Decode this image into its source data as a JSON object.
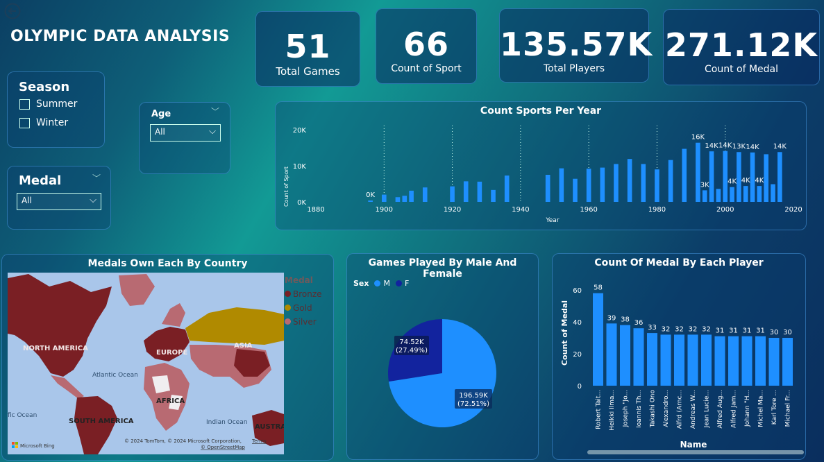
{
  "back_button_icon": "back-arrow-icon",
  "title": "OLYMPIC DATA ANALYSIS",
  "kpis": [
    {
      "value": "51",
      "label": "Total Games"
    },
    {
      "value": "66",
      "label": "Count of Sport"
    },
    {
      "value": "135.57K",
      "label": "Total Players"
    },
    {
      "value": "271.12K",
      "label": "Count of Medal"
    }
  ],
  "filters": {
    "season": {
      "title": "Season",
      "options": [
        "Summer",
        "Winter"
      ]
    },
    "age": {
      "title": "Age",
      "value": "All"
    },
    "medal": {
      "title": "Medal",
      "value": "All"
    }
  },
  "colors": {
    "bar": "#1e8fff",
    "male": "#1e8fff",
    "female": "#12239e",
    "bronze": "#7a1f24",
    "gold": "#b08a00",
    "silver": "#b86a72"
  },
  "sports_chart": {
    "title": "Count Sports Per Year",
    "xlabel": "Year",
    "ylabel": "Count of Sport",
    "yticks": [
      "0K",
      "10K",
      "20K"
    ],
    "xticks": [
      "1880",
      "1900",
      "1920",
      "1940",
      "1960",
      "1980",
      "2000",
      "2020"
    ],
    "data_labels": [
      "0K",
      "16K",
      "14K",
      "14K",
      "13K",
      "14K",
      "14K",
      "3K",
      "4K",
      "4K",
      "4K"
    ]
  },
  "map": {
    "title": "Medals Own Each By Country",
    "legend_title": "Medal",
    "legend": [
      "Bronze",
      "Gold",
      "Silver"
    ],
    "labels": [
      "NORTH AMERICA",
      "EUROPE",
      "ASIA",
      "AFRICA",
      "SOUTH AMERICA",
      "AUSTRA",
      "Atlantic Ocean",
      "Indian Ocean",
      "fic Ocean"
    ],
    "attribution": "© 2024 TomTom, © 2024 Microsoft Corporation,",
    "terms": "Terms",
    "osm": "© OpenStreetMap",
    "bing": "Microsoft Bing"
  },
  "pie": {
    "title": "Games Played By Male And Female",
    "legend_title": "Sex",
    "legend": [
      "M",
      "F"
    ],
    "label_f_value": "74.52K",
    "label_f_pct": "(27.49%)",
    "label_m_value": "196.59K",
    "label_m_pct": "(72.51%)"
  },
  "player_chart": {
    "title": "Count Of Medal By Each Player",
    "xlabel": "Name",
    "ylabel": "Count of Medal",
    "yticks": [
      "0",
      "20",
      "40",
      "60"
    ]
  },
  "chart_data": [
    {
      "type": "bar",
      "title": "Count Sports Per Year",
      "xlabel": "Year",
      "ylabel": "Count of Sport",
      "xlim": [
        1880,
        2020
      ],
      "ylim": [
        0,
        20000
      ],
      "x": [
        1896,
        1900,
        1904,
        1906,
        1908,
        1912,
        1920,
        1924,
        1928,
        1932,
        1936,
        1948,
        1952,
        1956,
        1960,
        1964,
        1968,
        1972,
        1976,
        1980,
        1984,
        1988,
        1992,
        1994,
        1996,
        1998,
        2000,
        2002,
        2004,
        2006,
        2008,
        2010,
        2012,
        2014,
        2016
      ],
      "values": [
        380,
        2000,
        1300,
        1700,
        3100,
        4000,
        4300,
        5700,
        5600,
        3300,
        7300,
        7500,
        9300,
        6400,
        9200,
        9500,
        10500,
        11900,
        10500,
        9000,
        11600,
        14700,
        16400,
        3200,
        14000,
        3600,
        14100,
        4100,
        13800,
        4400,
        13700,
        4400,
        13200,
        4900,
        13800
      ]
    },
    {
      "type": "pie",
      "title": "Games Played By Male And Female",
      "categories": [
        "M",
        "F"
      ],
      "values": [
        196590,
        74520
      ],
      "percent": [
        72.51,
        27.49
      ]
    },
    {
      "type": "bar",
      "title": "Count Of Medal By Each Player",
      "xlabel": "Name",
      "ylabel": "Count of Medal",
      "ylim": [
        0,
        65
      ],
      "categories": [
        "Robert Tait...",
        "Heikki Ilma...",
        "Joseph \"Jo...",
        "Ioannis Th...",
        "Takashi Ono",
        "Alexandro...",
        "Alfrd (Arnc...",
        "Andreas W...",
        "Jean Lucie...",
        "Alfred Aug...",
        "Alfred Jam...",
        "Johann \"H...",
        "Michel Ma...",
        "Karl Tore ...",
        "Michael Fr..."
      ],
      "values": [
        58,
        39,
        38,
        36,
        33,
        32,
        32,
        32,
        32,
        31,
        31,
        31,
        31,
        30,
        30
      ]
    }
  ]
}
